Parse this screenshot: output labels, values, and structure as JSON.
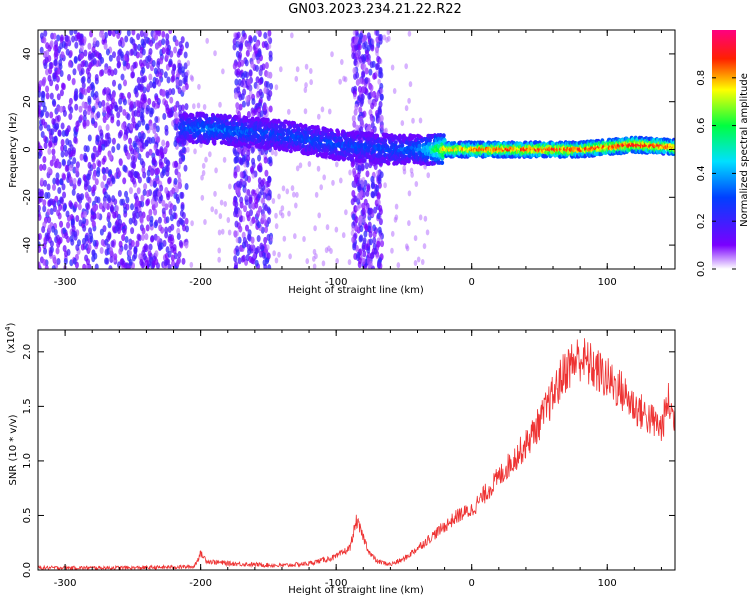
{
  "title": "GN03.2023.234.21.22.R22",
  "chart_data": [
    {
      "type": "heatmap",
      "xlabel": "Height of straight line (km)",
      "ylabel": "Frequency (Hz)",
      "xlim": [
        -320,
        150
      ],
      "ylim": [
        -50,
        50
      ],
      "xticks": [
        -300,
        -200,
        -100,
        0,
        100
      ],
      "yticks": [
        -40,
        -20,
        0,
        20,
        40
      ],
      "colorbar": {
        "label": "Normalized spectral amplitude",
        "range": [
          0,
          1
        ],
        "ticks": [
          0.0,
          0.2,
          0.4,
          0.6,
          0.8
        ],
        "colormap": "rainbow (purple → blue → cyan → green → yellow → red → magenta)"
      },
      "signal_ridge": {
        "x": [
          -215,
          -200,
          -180,
          -160,
          -140,
          -120,
          -100,
          -80,
          -60,
          -40,
          -30,
          -20,
          0,
          20,
          50,
          80,
          100,
          120,
          150
        ],
        "freq_hz": [
          9,
          9,
          8,
          7,
          6,
          4,
          2,
          1,
          0,
          0,
          0,
          0,
          0,
          0,
          0,
          0,
          1,
          2,
          1
        ],
        "peak_amplitude": [
          0.3,
          0.35,
          0.35,
          0.3,
          0.3,
          0.3,
          0.3,
          0.3,
          0.3,
          0.35,
          0.5,
          0.8,
          0.85,
          0.9,
          0.9,
          0.9,
          0.9,
          0.95,
          0.9
        ]
      },
      "noise_bands_x": [
        [
          -320,
          -210
        ],
        [
          -175,
          -148
        ],
        [
          -88,
          -66
        ]
      ]
    },
    {
      "type": "line",
      "xlabel": "Height of straight line (km)",
      "ylabel": "SNR (10 * v/v)",
      "y_multiplier": "(x10^4)",
      "xlim": [
        -320,
        150
      ],
      "ylim": [
        0,
        2.2
      ],
      "xticks": [
        -300,
        -200,
        -100,
        0,
        100
      ],
      "yticks": [
        0.0,
        0.5,
        1.0,
        1.5,
        2.0
      ],
      "series": [
        {
          "color": "#ee3333",
          "x": [
            -320,
            -250,
            -205,
            -200,
            -195,
            -180,
            -160,
            -140,
            -120,
            -100,
            -90,
            -85,
            -80,
            -75,
            -70,
            -60,
            -50,
            -40,
            -30,
            -20,
            -10,
            0,
            10,
            20,
            30,
            40,
            50,
            60,
            70,
            80,
            90,
            100,
            110,
            120,
            130,
            140,
            145,
            150
          ],
          "y": [
            0.02,
            0.02,
            0.03,
            0.15,
            0.08,
            0.06,
            0.05,
            0.04,
            0.06,
            0.12,
            0.2,
            0.45,
            0.3,
            0.15,
            0.08,
            0.05,
            0.1,
            0.2,
            0.3,
            0.4,
            0.5,
            0.55,
            0.7,
            0.85,
            1.0,
            1.15,
            1.35,
            1.6,
            1.85,
            1.95,
            1.85,
            1.75,
            1.65,
            1.5,
            1.4,
            1.3,
            1.55,
            1.35
          ]
        }
      ]
    }
  ]
}
